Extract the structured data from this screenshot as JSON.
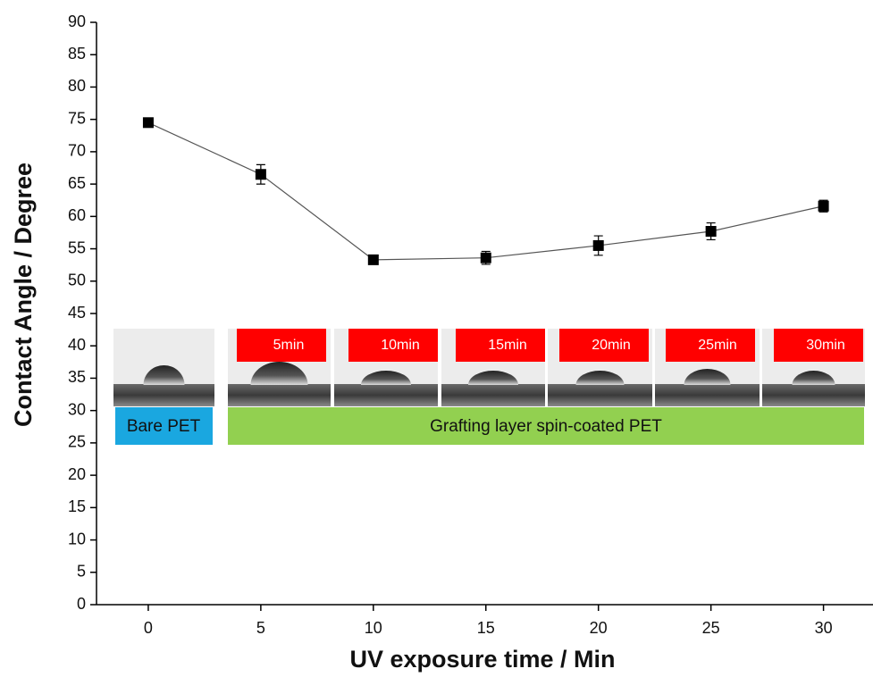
{
  "chart_data": {
    "type": "line",
    "x_label": "UV exposure time / Min",
    "y_label": "Contact Angle / Degree",
    "x": [
      0,
      5,
      10,
      15,
      20,
      25,
      30
    ],
    "series": [
      {
        "color": "#000000",
        "values": [
          74.5,
          66.5,
          53.3,
          53.6,
          55.5,
          57.7,
          61.6
        ],
        "errors": [
          0.4,
          1.5,
          0.5,
          1.0,
          1.5,
          1.3,
          0.9
        ]
      }
    ],
    "xlim": [
      -2.3,
      32.2
    ],
    "xticks": [
      0,
      5,
      10,
      15,
      20,
      25,
      30
    ],
    "ylim": [
      0,
      90
    ],
    "yticks": [
      0,
      5,
      10,
      15,
      20,
      25,
      30,
      35,
      40,
      45,
      50,
      55,
      60,
      65,
      70,
      75,
      80,
      85,
      90
    ],
    "photo_labels": [
      "5min",
      "10min",
      "15min",
      "20min",
      "25min",
      "30min"
    ],
    "bare_label": "Bare PET",
    "grafted_label": "Grafting layer spin-coated PET"
  }
}
